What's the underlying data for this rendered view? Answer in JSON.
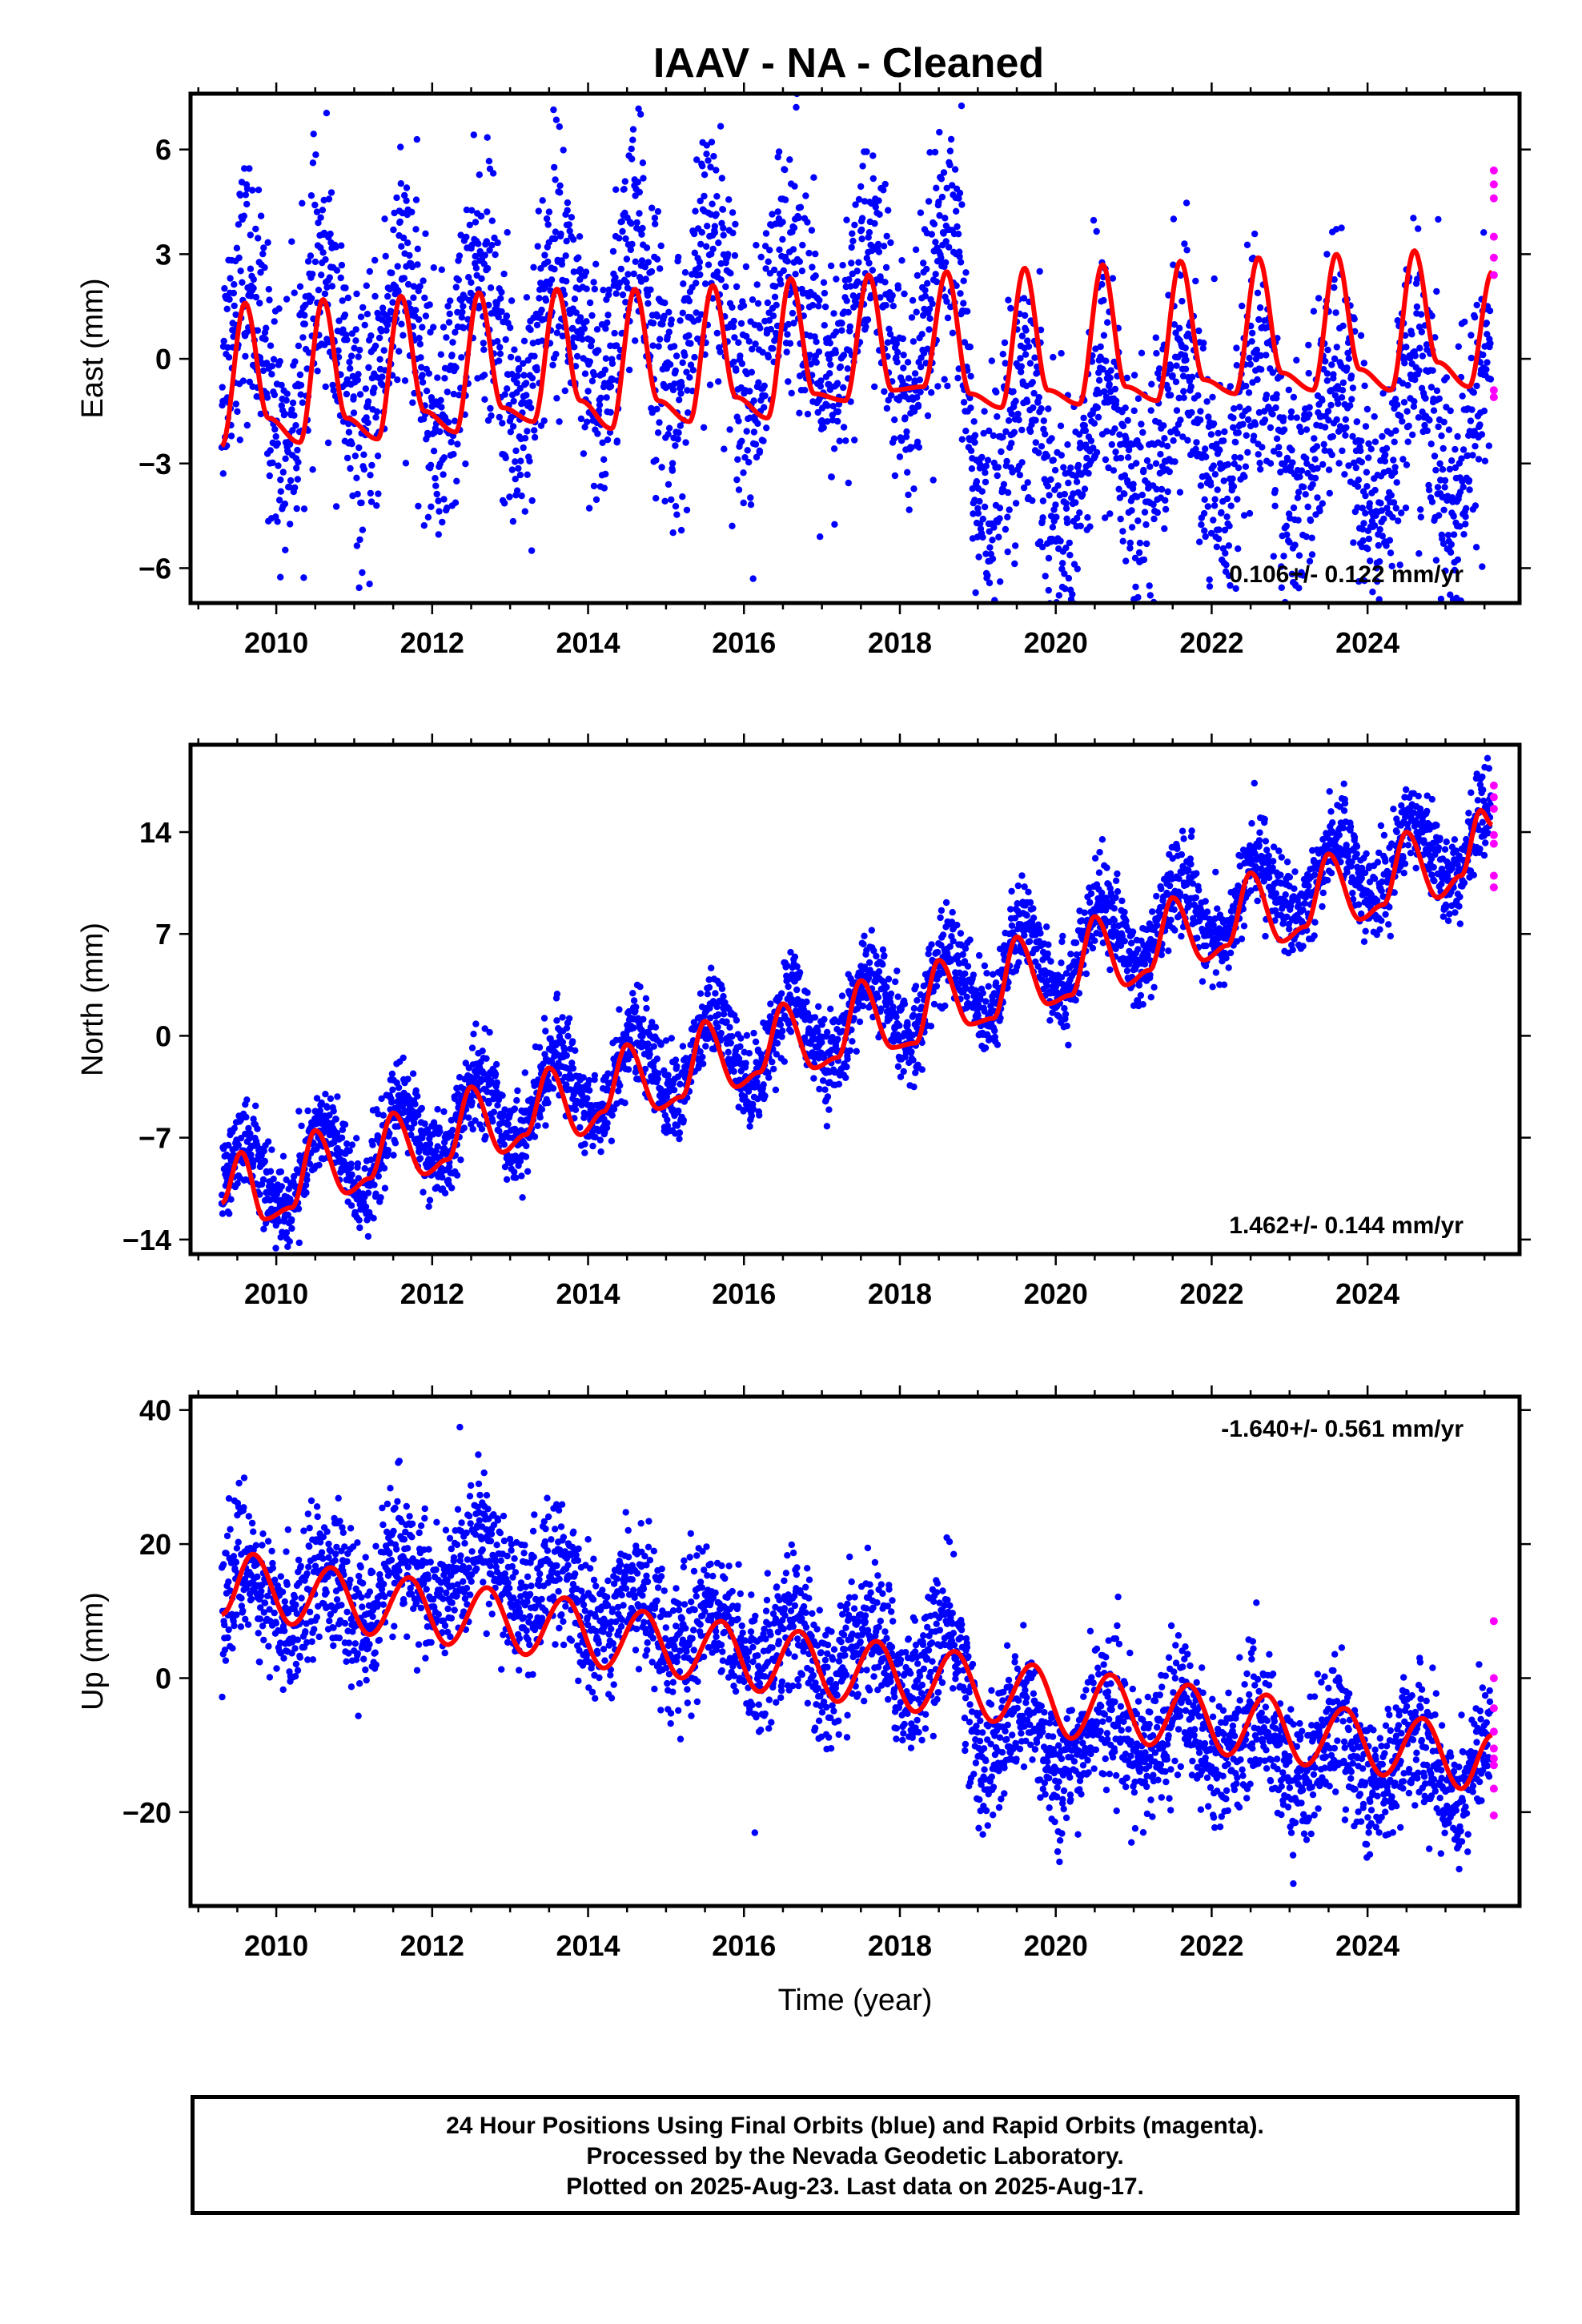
{
  "title": "IAAV  - NA - Cleaned",
  "colors": {
    "final_orbits": "#0000ff",
    "rapid_orbits": "#ff00ff",
    "model": "#ff0000",
    "frame": "#000000"
  },
  "caption": {
    "line1": "24 Hour Positions Using Final Orbits (blue) and Rapid Orbits (magenta).",
    "line2": "Processed by the Nevada Geodetic Laboratory.",
    "line3": "Plotted on 2025-Aug-23. Last data on 2025-Aug-17."
  },
  "chart_data": [
    {
      "type": "scatter",
      "component": "east",
      "ylabel": "East (mm)",
      "xlabel": "",
      "xlim": [
        2008.9,
        2025.95
      ],
      "ylim": [
        -7.0,
        7.6
      ],
      "x_ticks": [
        2010,
        2012,
        2014,
        2016,
        2018,
        2020,
        2022,
        2024
      ],
      "y_ticks": [
        -6,
        -3,
        0,
        3,
        6
      ],
      "y_tick_labels": [
        "−6",
        "−3",
        "0",
        "3",
        "6"
      ],
      "velocity_label": "0.106+/- 0.122 mm/yr",
      "velocity_position": "bottom-right",
      "grid": false,
      "model": {
        "start": 2009.3,
        "end": 2025.6,
        "knots": [
          [
            2009.3,
            -2.5
          ],
          [
            2009.6,
            1.6
          ],
          [
            2009.9,
            -1.7
          ],
          [
            2010.3,
            -2.4
          ],
          [
            2010.6,
            1.7
          ],
          [
            2010.9,
            -1.7
          ],
          [
            2011.3,
            -2.3
          ],
          [
            2011.6,
            1.8
          ],
          [
            2011.9,
            -1.5
          ],
          [
            2012.3,
            -2.1
          ],
          [
            2012.6,
            1.9
          ],
          [
            2012.9,
            -1.4
          ],
          [
            2013.3,
            -1.8
          ],
          [
            2013.6,
            2.0
          ],
          [
            2013.9,
            -1.2
          ],
          [
            2014.3,
            -2.0
          ],
          [
            2014.6,
            2.0
          ],
          [
            2014.9,
            -1.2
          ],
          [
            2015.3,
            -1.8
          ],
          [
            2015.6,
            2.1
          ],
          [
            2015.9,
            -1.1
          ],
          [
            2016.3,
            -1.7
          ],
          [
            2016.6,
            2.3
          ],
          [
            2016.9,
            -1.0
          ],
          [
            2017.3,
            -1.2
          ],
          [
            2017.6,
            2.4
          ],
          [
            2017.9,
            -0.9
          ],
          [
            2018.3,
            -0.8
          ],
          [
            2018.6,
            2.5
          ],
          [
            2018.9,
            -1.0
          ],
          [
            2019.3,
            -1.4
          ],
          [
            2019.6,
            2.6
          ],
          [
            2019.9,
            -0.9
          ],
          [
            2020.3,
            -1.3
          ],
          [
            2020.6,
            2.7
          ],
          [
            2020.9,
            -0.8
          ],
          [
            2021.3,
            -1.2
          ],
          [
            2021.6,
            2.8
          ],
          [
            2021.9,
            -0.6
          ],
          [
            2022.3,
            -1.0
          ],
          [
            2022.6,
            2.9
          ],
          [
            2022.9,
            -0.4
          ],
          [
            2023.3,
            -0.9
          ],
          [
            2023.6,
            3.0
          ],
          [
            2023.9,
            -0.3
          ],
          [
            2024.3,
            -0.9
          ],
          [
            2024.6,
            3.1
          ],
          [
            2024.9,
            -0.1
          ],
          [
            2025.3,
            -0.8
          ],
          [
            2025.6,
            2.5
          ]
        ]
      },
      "final_orbits": {
        "start": 2009.3,
        "end": 2025.58,
        "count": 3600,
        "scatter_mm": 1.8,
        "trend_knots": [
          [
            2009.3,
            0.0
          ],
          [
            2010.0,
            0.0
          ],
          [
            2011.0,
            -0.1
          ],
          [
            2012.0,
            0.2
          ],
          [
            2013.0,
            0.5
          ],
          [
            2014.0,
            0.9
          ],
          [
            2015.0,
            1.0
          ],
          [
            2016.0,
            1.2
          ],
          [
            2017.0,
            0.9
          ],
          [
            2018.0,
            1.0
          ],
          [
            2018.8,
            0.8
          ],
          [
            2019.0,
            -2.6
          ],
          [
            2020.0,
            -2.8
          ],
          [
            2021.0,
            -2.4
          ],
          [
            2022.0,
            -2.1
          ],
          [
            2023.0,
            -2.3
          ],
          [
            2024.0,
            -2.5
          ],
          [
            2025.0,
            -2.0
          ],
          [
            2025.6,
            -1.8
          ]
        ],
        "season_amp": 2.2
      },
      "rapid_orbits": {
        "x": 2025.62,
        "y": [
          5.4,
          5.0,
          4.6,
          3.5,
          2.9,
          2.4,
          -0.9,
          -1.1
        ]
      }
    },
    {
      "type": "scatter",
      "component": "north",
      "ylabel": "North (mm)",
      "xlabel": "",
      "xlim": [
        2008.9,
        2025.95
      ],
      "ylim": [
        -15.0,
        20.0
      ],
      "x_ticks": [
        2010,
        2012,
        2014,
        2016,
        2018,
        2020,
        2022,
        2024
      ],
      "y_ticks": [
        -14,
        -7,
        0,
        7,
        14
      ],
      "y_tick_labels": [
        "−14",
        "−7",
        "0",
        "7",
        "14"
      ],
      "velocity_label": "1.462+/- 0.144 mm/yr",
      "velocity_position": "bottom-right",
      "grid": false,
      "model": {
        "start": 2009.3,
        "end": 2025.6,
        "knots": [
          [
            2009.3,
            -11.5
          ],
          [
            2009.55,
            -8.0
          ],
          [
            2009.85,
            -12.6
          ],
          [
            2010.2,
            -11.8
          ],
          [
            2010.5,
            -6.5
          ],
          [
            2010.9,
            -10.8
          ],
          [
            2011.2,
            -9.8
          ],
          [
            2011.5,
            -5.3
          ],
          [
            2011.9,
            -9.5
          ],
          [
            2012.2,
            -8.5
          ],
          [
            2012.5,
            -3.5
          ],
          [
            2012.9,
            -8.0
          ],
          [
            2013.2,
            -6.8
          ],
          [
            2013.5,
            -2.2
          ],
          [
            2013.9,
            -6.8
          ],
          [
            2014.2,
            -5.2
          ],
          [
            2014.5,
            -0.6
          ],
          [
            2014.9,
            -5.0
          ],
          [
            2015.2,
            -4.2
          ],
          [
            2015.5,
            1.0
          ],
          [
            2015.9,
            -3.5
          ],
          [
            2016.2,
            -2.5
          ],
          [
            2016.5,
            2.2
          ],
          [
            2016.9,
            -2.2
          ],
          [
            2017.2,
            -1.5
          ],
          [
            2017.5,
            3.8
          ],
          [
            2017.9,
            -0.8
          ],
          [
            2018.2,
            -0.5
          ],
          [
            2018.5,
            5.2
          ],
          [
            2018.9,
            0.8
          ],
          [
            2019.2,
            1.2
          ],
          [
            2019.5,
            6.8
          ],
          [
            2019.9,
            2.2
          ],
          [
            2020.2,
            2.8
          ],
          [
            2020.5,
            8.2
          ],
          [
            2020.9,
            3.5
          ],
          [
            2021.2,
            4.5
          ],
          [
            2021.5,
            9.5
          ],
          [
            2021.9,
            5.2
          ],
          [
            2022.2,
            6.2
          ],
          [
            2022.5,
            11.2
          ],
          [
            2022.9,
            6.5
          ],
          [
            2023.2,
            7.5
          ],
          [
            2023.5,
            12.5
          ],
          [
            2023.9,
            8.0
          ],
          [
            2024.2,
            9.0
          ],
          [
            2024.5,
            14.0
          ],
          [
            2024.9,
            9.5
          ],
          [
            2025.2,
            11.0
          ],
          [
            2025.45,
            15.5
          ],
          [
            2025.6,
            14.5
          ]
        ]
      },
      "final_orbits": {
        "start": 2009.3,
        "end": 2025.58,
        "count": 3600,
        "scatter_mm": 1.5,
        "trend_knots": [
          [
            2009.3,
            -10.0
          ],
          [
            2010.0,
            -9.5
          ],
          [
            2011.0,
            -8.4
          ],
          [
            2012.0,
            -6.5
          ],
          [
            2013.0,
            -4.8
          ],
          [
            2014.0,
            -3.2
          ],
          [
            2015.0,
            -1.9
          ],
          [
            2016.0,
            -0.8
          ],
          [
            2017.0,
            0.6
          ],
          [
            2018.0,
            2.0
          ],
          [
            2019.0,
            4.0
          ],
          [
            2020.0,
            5.6
          ],
          [
            2021.0,
            7.0
          ],
          [
            2022.0,
            8.7
          ],
          [
            2023.0,
            10.2
          ],
          [
            2024.0,
            11.8
          ],
          [
            2025.0,
            13.0
          ],
          [
            2025.6,
            14.0
          ]
        ],
        "season_amp": 2.6
      },
      "rapid_orbits": {
        "x": 2025.62,
        "y": [
          17.2,
          16.4,
          15.6,
          13.8,
          13.2,
          11.0,
          10.2
        ]
      }
    },
    {
      "type": "scatter",
      "component": "up",
      "ylabel": "Up (mm)",
      "xlabel": "Time (year)",
      "xlim": [
        2008.9,
        2025.95
      ],
      "ylim": [
        -34.0,
        42.0
      ],
      "x_ticks": [
        2010,
        2012,
        2014,
        2016,
        2018,
        2020,
        2022,
        2024
      ],
      "y_ticks": [
        -20,
        0,
        20,
        40
      ],
      "y_tick_labels": [
        "−20",
        "0",
        "20",
        "40"
      ],
      "velocity_label": "-1.640+/- 0.561 mm/yr",
      "velocity_position": "top-right",
      "grid": false,
      "model": {
        "start": 2009.3,
        "end": 2025.6,
        "knots": [
          [
            2009.3,
            9.5
          ],
          [
            2009.7,
            18.5
          ],
          [
            2010.2,
            8.0
          ],
          [
            2010.7,
            16.5
          ],
          [
            2011.2,
            6.5
          ],
          [
            2011.7,
            15.0
          ],
          [
            2012.2,
            5.0
          ],
          [
            2012.7,
            13.5
          ],
          [
            2013.2,
            3.5
          ],
          [
            2013.7,
            12.0
          ],
          [
            2014.2,
            1.5
          ],
          [
            2014.7,
            10.0
          ],
          [
            2015.2,
            0.0
          ],
          [
            2015.7,
            8.5
          ],
          [
            2016.2,
            -2.0
          ],
          [
            2016.7,
            7.0
          ],
          [
            2017.2,
            -3.5
          ],
          [
            2017.7,
            5.5
          ],
          [
            2018.2,
            -5.0
          ],
          [
            2018.7,
            4.0
          ],
          [
            2019.2,
            -6.5
          ],
          [
            2019.7,
            2.0
          ],
          [
            2020.2,
            -9.0
          ],
          [
            2020.7,
            0.5
          ],
          [
            2021.2,
            -10.0
          ],
          [
            2021.7,
            -1.0
          ],
          [
            2022.2,
            -11.5
          ],
          [
            2022.7,
            -2.5
          ],
          [
            2023.2,
            -13.0
          ],
          [
            2023.7,
            -4.5
          ],
          [
            2024.2,
            -14.5
          ],
          [
            2024.7,
            -6.0
          ],
          [
            2025.2,
            -16.5
          ],
          [
            2025.6,
            -8.5
          ]
        ]
      },
      "final_orbits": {
        "start": 2009.3,
        "end": 2025.58,
        "count": 3600,
        "scatter_mm": 5.0,
        "trend_knots": [
          [
            2009.3,
            12.0
          ],
          [
            2010.0,
            12.0
          ],
          [
            2011.0,
            12.5
          ],
          [
            2012.0,
            15.0
          ],
          [
            2012.8,
            17.0
          ],
          [
            2013.5,
            12.0
          ],
          [
            2014.0,
            11.5
          ],
          [
            2015.0,
            9.0
          ],
          [
            2016.0,
            5.5
          ],
          [
            2017.0,
            4.0
          ],
          [
            2018.0,
            3.0
          ],
          [
            2018.8,
            2.0
          ],
          [
            2019.0,
            -8.0
          ],
          [
            2020.0,
            -10.0
          ],
          [
            2021.0,
            -8.0
          ],
          [
            2022.0,
            -8.0
          ],
          [
            2023.0,
            -11.0
          ],
          [
            2024.0,
            -12.0
          ],
          [
            2025.0,
            -13.0
          ],
          [
            2025.6,
            -14.0
          ]
        ],
        "season_amp": 4.5
      },
      "rapid_orbits": {
        "x": 2025.62,
        "y": [
          8.5,
          0.0,
          -4.5,
          -8.0,
          -10.5,
          -12.0,
          -13.0,
          -16.5,
          -20.5
        ]
      }
    }
  ]
}
